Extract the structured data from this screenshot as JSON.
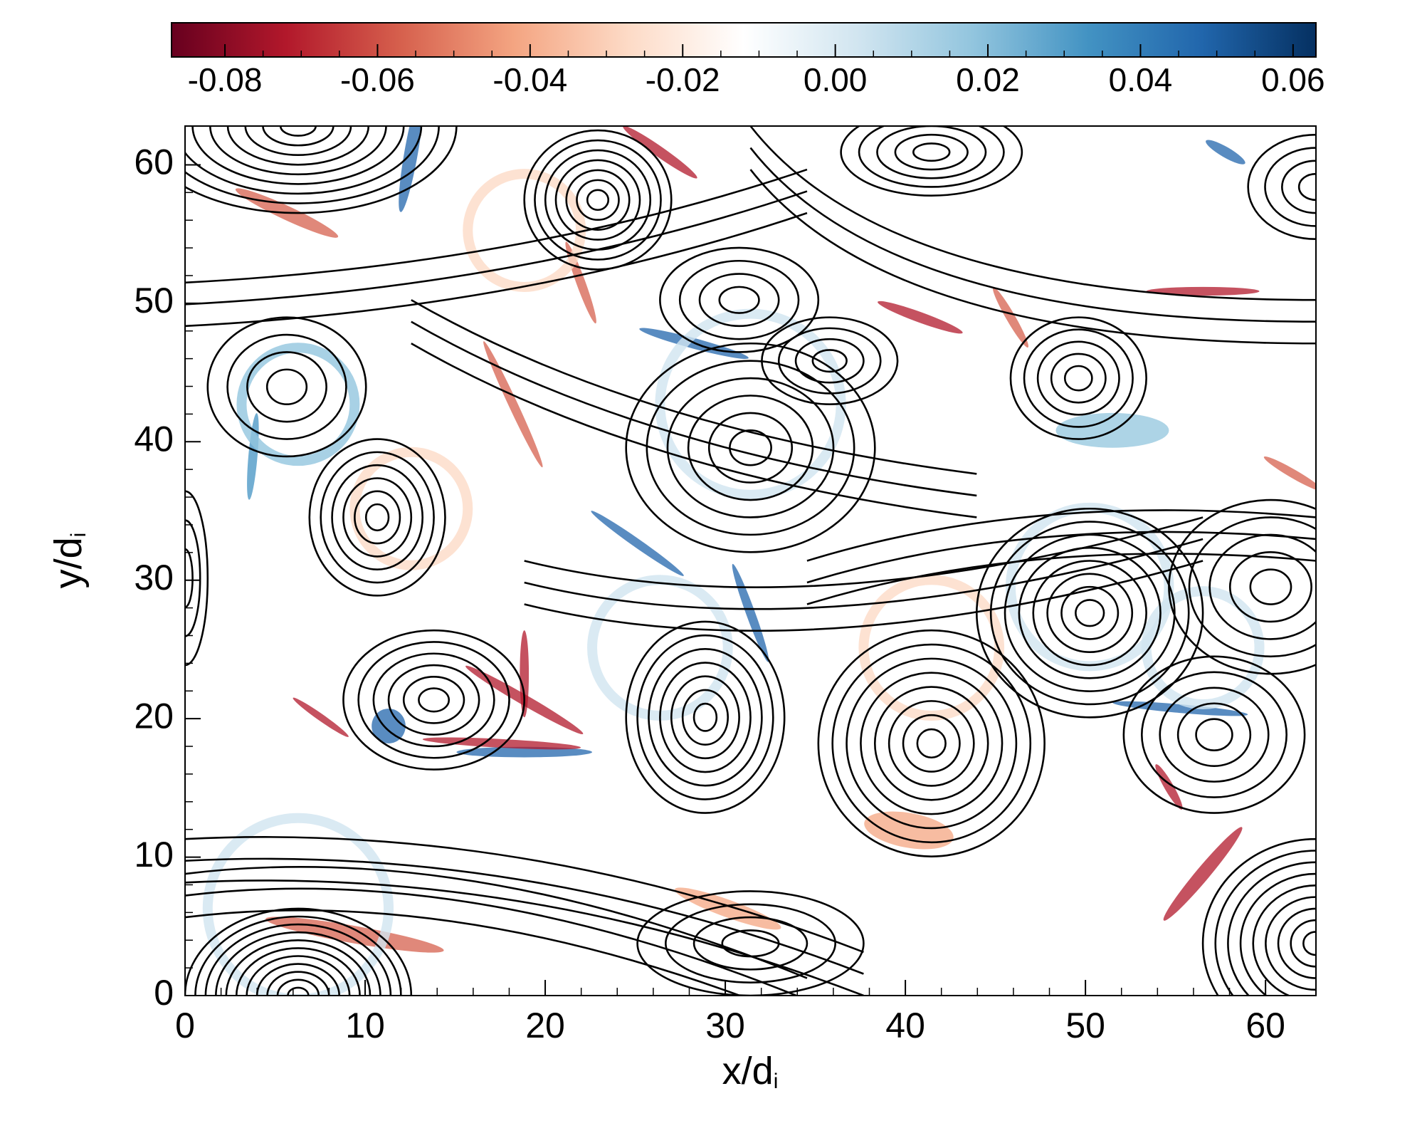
{
  "chart_data": {
    "type": "heatmap",
    "xlabel": {
      "main": "x/d",
      "sub": "i"
    },
    "ylabel": {
      "main": "y/d",
      "sub": "i"
    },
    "xlim": [
      0,
      62.8
    ],
    "ylim": [
      0,
      62.8
    ],
    "xticks": [
      0,
      10,
      20,
      30,
      40,
      50,
      60
    ],
    "yticks": [
      0,
      10,
      20,
      30,
      40,
      50,
      60
    ],
    "colorbar": {
      "clim": [
        -0.087,
        0.063
      ],
      "ticks": [
        -0.08,
        -0.06,
        -0.04,
        -0.02,
        {
          "value": 0,
          "label": "0.00"
        },
        0.02,
        0.04,
        0.06
      ],
      "colormap": [
        "#67001f",
        "#b2182b",
        "#d6604d",
        "#f4a582",
        "#fddbc7",
        "#ffffff",
        "#d1e5f0",
        "#92c5de",
        "#4393c3",
        "#2166ac",
        "#053061"
      ]
    }
  }
}
